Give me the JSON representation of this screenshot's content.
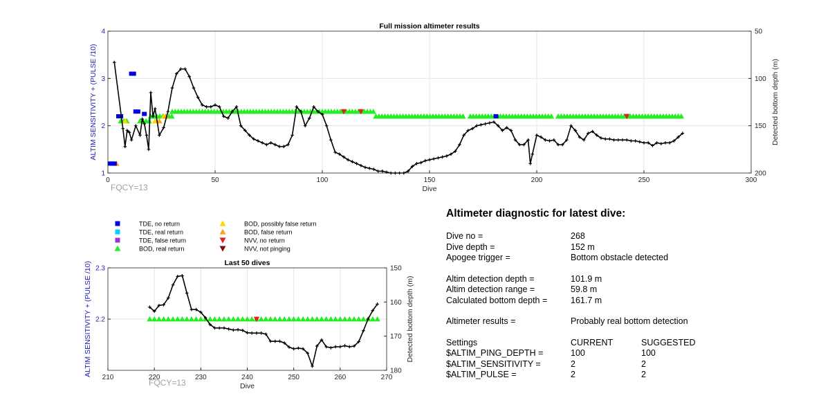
{
  "chart_data": [
    {
      "type": "scatter",
      "title": "Full mission altimeter results",
      "xlabel": "Dive",
      "ylabel_left": "ALTIM SENSITIVITY + (PULSE /10)",
      "ylabel_right": "Detected bottom depth (m)",
      "xlim": [
        0,
        300
      ],
      "ylim_left": [
        1,
        4
      ],
      "ylim_right": [
        50,
        200
      ],
      "right_axis_reversed": true,
      "xticks": [
        0,
        50,
        100,
        150,
        200,
        250,
        300
      ],
      "yticks_left": [
        1,
        2,
        3,
        4
      ],
      "yticks_right": [
        50,
        100,
        150,
        200
      ],
      "grid": true,
      "annotation": "FQCY=13",
      "markers": {
        "tde_no_return": [
          [
            1,
            1.2
          ],
          [
            2,
            1.2
          ],
          [
            3,
            1.2
          ],
          [
            5,
            2.2
          ],
          [
            6,
            2.2
          ],
          [
            11,
            3.1
          ],
          [
            12,
            3.1
          ],
          [
            13,
            2.3
          ],
          [
            14,
            2.3
          ],
          [
            17,
            2.25
          ],
          [
            181,
            2.2
          ]
        ],
        "bod_real_return_ranges": [
          [
            6,
            10,
            2.1
          ],
          [
            15,
            20,
            2.1
          ],
          [
            20,
            30,
            2.2
          ],
          [
            30,
            125,
            2.3
          ],
          [
            125,
            166,
            2.2
          ],
          [
            169,
            208,
            2.2
          ],
          [
            210,
            268,
            2.2
          ]
        ],
        "bod_possibly_false": [
          [
            8,
            2.1
          ],
          [
            22,
            2.1
          ],
          [
            26,
            2.2
          ]
        ],
        "bod_false": [
          [
            4,
            1.2
          ],
          [
            24,
            2.1
          ],
          [
            27,
            2.2
          ]
        ],
        "nvv_no_return": [
          [
            110,
            2.3
          ],
          [
            118,
            2.3
          ],
          [
            242,
            2.2
          ]
        ]
      },
      "bottom_depth_series": {
        "name": "Detected bottom depth",
        "x": [
          3,
          7,
          8,
          9,
          10,
          11,
          13,
          15,
          16,
          17,
          18,
          19,
          20,
          21,
          22,
          24,
          26,
          28,
          30,
          32,
          34,
          36,
          38,
          40,
          42,
          44,
          46,
          48,
          50,
          52,
          54,
          56,
          58,
          60,
          62,
          64,
          66,
          68,
          70,
          72,
          74,
          76,
          78,
          80,
          82,
          84,
          86,
          88,
          90,
          92,
          94,
          96,
          98,
          100,
          102,
          104,
          106,
          108,
          110,
          112,
          114,
          116,
          118,
          120,
          122,
          124,
          126,
          128,
          130,
          132,
          134,
          136,
          138,
          140,
          142,
          144,
          146,
          148,
          150,
          152,
          154,
          156,
          158,
          160,
          162,
          164,
          166,
          168,
          170,
          172,
          174,
          176,
          178,
          180,
          182,
          184,
          186,
          188,
          190,
          192,
          194,
          196,
          197,
          198,
          200,
          202,
          204,
          206,
          208,
          210,
          212,
          214,
          216,
          218,
          220,
          222,
          224,
          226,
          228,
          230,
          232,
          234,
          236,
          238,
          240,
          242,
          244,
          246,
          248,
          250,
          252,
          254,
          256,
          258,
          260,
          262,
          264,
          266,
          268
        ],
        "y": [
          83,
          153,
          172,
          155,
          157,
          165,
          150,
          160,
          143,
          148,
          160,
          175,
          115,
          140,
          132,
          160,
          152,
          135,
          110,
          95,
          90,
          90,
          98,
          110,
          120,
          128,
          130,
          130,
          128,
          130,
          140,
          142,
          135,
          130,
          150,
          155,
          160,
          164,
          166,
          168,
          170,
          168,
          170,
          172,
          172,
          170,
          160,
          130,
          135,
          150,
          142,
          130,
          135,
          138,
          150,
          165,
          178,
          180,
          183,
          186,
          188,
          190,
          192,
          194,
          195,
          196,
          198,
          198,
          199,
          200,
          200,
          200,
          200,
          198,
          193,
          190,
          189,
          187,
          186,
          185,
          184,
          183,
          182,
          180,
          177,
          170,
          160,
          155,
          153,
          150,
          149,
          148,
          147,
          146,
          150,
          155,
          152,
          155,
          165,
          170,
          170,
          165,
          190,
          180,
          160,
          162,
          165,
          166,
          165,
          170,
          170,
          165,
          150,
          155,
          162,
          165,
          158,
          156,
          160,
          163,
          164,
          164,
          165,
          165,
          165,
          165,
          166,
          166,
          167,
          168,
          168,
          171,
          168,
          169,
          168,
          168,
          166,
          162,
          158
        ]
      }
    },
    {
      "type": "scatter",
      "title": "Last 50 dives",
      "xlabel": "Dive",
      "ylabel_left": "ALTIM SENSITIVITY + (PULSE /10)",
      "ylabel_right": "Detected bottom depth (m)",
      "xlim": [
        210,
        270
      ],
      "ylim_left": [
        2.1,
        2.3
      ],
      "ylim_right": [
        150,
        180
      ],
      "right_axis_reversed": true,
      "xticks": [
        210,
        220,
        230,
        240,
        250,
        260,
        270
      ],
      "yticks_left": [
        2.2,
        2.3
      ],
      "yticks_right": [
        150,
        160,
        170,
        180
      ],
      "grid": true,
      "annotation": "FQCY=13",
      "markers": {
        "bod_real_return_range": [
          219,
          268,
          2.2
        ],
        "nvv_no_return": [
          [
            242,
            2.2
          ]
        ]
      },
      "bottom_depth_series": {
        "name": "Detected bottom depth",
        "x": [
          219,
          220,
          221,
          222,
          223,
          224,
          225,
          226,
          227,
          228,
          229,
          230,
          231,
          232,
          233,
          234,
          235,
          236,
          237,
          238,
          239,
          240,
          241,
          242,
          243,
          244,
          245,
          246,
          247,
          248,
          249,
          250,
          251,
          252,
          253,
          254,
          255,
          256,
          257,
          258,
          259,
          260,
          261,
          262,
          263,
          264,
          265,
          266,
          267,
          268
        ],
        "y": [
          161.5,
          162.7,
          161.0,
          160.8,
          158.8,
          155.0,
          152.5,
          152.3,
          157.4,
          162.2,
          162.2,
          163.0,
          164.6,
          166.6,
          167.6,
          167.6,
          167.6,
          167.9,
          168.2,
          168.1,
          168.3,
          169.0,
          169.1,
          169.1,
          169.1,
          169.4,
          171.5,
          171.5,
          171.5,
          172.0,
          173.2,
          173.7,
          173.5,
          173.7,
          175.0,
          178.8,
          172.9,
          171.1,
          173.1,
          173.4,
          173.1,
          173.1,
          172.8,
          173.1,
          172.9,
          171.6,
          168.4,
          165.0,
          162.5,
          160.6
        ]
      }
    }
  ],
  "legend": [
    {
      "label": "TDE, no return",
      "color": "#0000e0",
      "shape": "square"
    },
    {
      "label": "TDE, real return",
      "color": "#00d0ff",
      "shape": "square"
    },
    {
      "label": "TDE, false return",
      "color": "#9933cc",
      "shape": "square"
    },
    {
      "label": "BOD, real return",
      "color": "#22ee22",
      "shape": "triangle-up"
    },
    {
      "label": "BOD, possibly false return",
      "color": "#ffd700",
      "shape": "triangle-up"
    },
    {
      "label": "BOD, false return",
      "color": "#ffa020",
      "shape": "triangle-up"
    },
    {
      "label": "NVV, no return",
      "color": "#dd2222",
      "shape": "triangle-down"
    },
    {
      "label": "NVV, not pinging",
      "color": "#7a1010",
      "shape": "triangle-down"
    }
  ],
  "diagnostic": {
    "title": "Altimeter diagnostic for latest dive:",
    "dive_no_label": "Dive no =",
    "dive_no": "268",
    "dive_depth_label": "Dive depth =",
    "dive_depth": "152 m",
    "apogee_label": "Apogee trigger =",
    "apogee": "Bottom obstacle detected",
    "altim_depth_label": "Altim detection depth =",
    "altim_depth": "101.9 m",
    "altim_range_label": "Altim detection range =",
    "altim_range": "59.8 m",
    "calc_depth_label": "Calculated bottom depth =",
    "calc_depth": "161.7 m",
    "results_label": "Altimeter results =",
    "results": "Probably real bottom detection",
    "settings_label": "Settings",
    "current_label": "CURRENT",
    "suggested_label": "SUGGESTED",
    "settings": [
      {
        "name": "$ALTIM_PING_DEPTH =",
        "current": "100",
        "suggested": "100"
      },
      {
        "name": "$ALTIM_SENSITIVITY =",
        "current": "2",
        "suggested": "2"
      },
      {
        "name": "$ALTIM_PULSE =",
        "current": "2",
        "suggested": "2"
      }
    ]
  }
}
